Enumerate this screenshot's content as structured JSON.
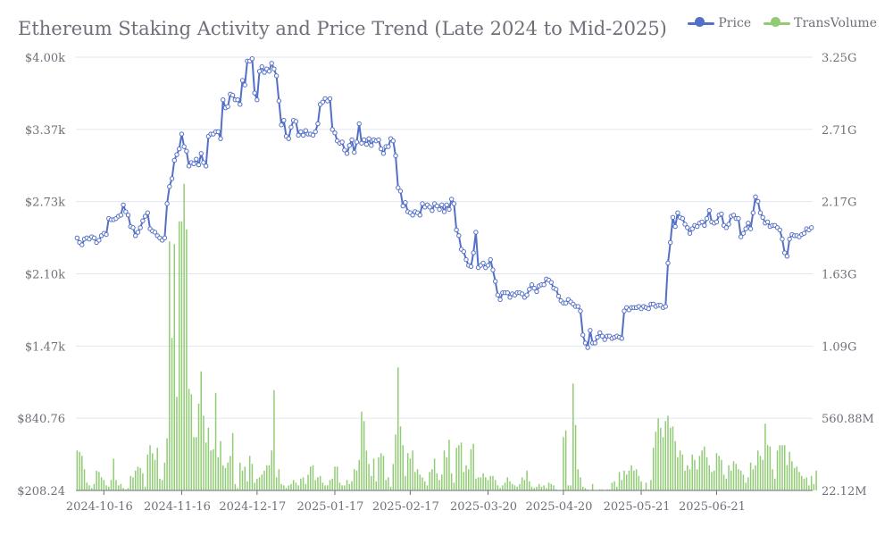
{
  "chart_data": {
    "type": "line",
    "title": "Ethereum Staking Activity and Price Trend (Late 2024 to Mid-2025)",
    "legend": {
      "position": "top-right"
    },
    "series": [
      {
        "name": "Price",
        "kind": "line",
        "axis": "left",
        "color": "#5470c6",
        "values": [
          2420,
          2380,
          2360,
          2410,
          2420,
          2410,
          2430,
          2420,
          2380,
          2400,
          2440,
          2460,
          2450,
          2590,
          2580,
          2580,
          2590,
          2610,
          2620,
          2710,
          2650,
          2620,
          2520,
          2510,
          2440,
          2470,
          2510,
          2570,
          2610,
          2640,
          2500,
          2480,
          2470,
          2440,
          2420,
          2400,
          2420,
          2720,
          2870,
          2940,
          3100,
          3150,
          3200,
          3330,
          3220,
          3180,
          3050,
          3080,
          3070,
          3110,
          3060,
          3160,
          3080,
          3050,
          3310,
          3330,
          3330,
          3350,
          3350,
          3290,
          3630,
          3560,
          3570,
          3680,
          3670,
          3630,
          3630,
          3590,
          3800,
          3760,
          3970,
          3970,
          3990,
          3690,
          3630,
          3880,
          3920,
          3870,
          3900,
          3880,
          3950,
          3900,
          3840,
          3620,
          3410,
          3450,
          3310,
          3290,
          3390,
          3450,
          3440,
          3320,
          3350,
          3320,
          3360,
          3330,
          3330,
          3320,
          3350,
          3420,
          3590,
          3610,
          3640,
          3620,
          3640,
          3370,
          3340,
          3270,
          3250,
          3260,
          3190,
          3160,
          3230,
          3280,
          3170,
          3260,
          3420,
          3250,
          3280,
          3240,
          3290,
          3230,
          3280,
          3270,
          3280,
          3200,
          3160,
          3220,
          3220,
          3290,
          3270,
          3140,
          2860,
          2830,
          2700,
          2730,
          2650,
          2640,
          2620,
          2650,
          2640,
          2620,
          2720,
          2690,
          2710,
          2690,
          2660,
          2720,
          2700,
          2670,
          2710,
          2650,
          2710,
          2670,
          2760,
          2720,
          2490,
          2440,
          2320,
          2300,
          2230,
          2180,
          2170,
          2290,
          2470,
          2160,
          2180,
          2200,
          2160,
          2180,
          2230,
          2140,
          2040,
          1920,
          1880,
          1940,
          1940,
          1940,
          1900,
          1930,
          1920,
          1940,
          1940,
          1930,
          1900,
          1920,
          1970,
          2010,
          1980,
          1950,
          2000,
          2010,
          2010,
          2060,
          2050,
          2030,
          1980,
          1970,
          1910,
          1870,
          1850,
          1850,
          1880,
          1860,
          1840,
          1820,
          1820,
          1780,
          1570,
          1500,
          1460,
          1610,
          1500,
          1500,
          1550,
          1590,
          1560,
          1530,
          1560,
          1560,
          1540,
          1550,
          1560,
          1550,
          1540,
          1780,
          1810,
          1790,
          1810,
          1810,
          1810,
          1820,
          1800,
          1820,
          1810,
          1800,
          1840,
          1840,
          1820,
          1830,
          1830,
          1810,
          1820,
          2200,
          2380,
          2600,
          2520,
          2640,
          2600,
          2590,
          2540,
          2510,
          2460,
          2500,
          2530,
          2520,
          2550,
          2560,
          2530,
          2590,
          2660,
          2560,
          2550,
          2560,
          2620,
          2630,
          2530,
          2510,
          2540,
          2610,
          2620,
          2590,
          2590,
          2430,
          2460,
          2500,
          2550,
          2500,
          2640,
          2780,
          2740,
          2640,
          2600,
          2550,
          2560,
          2520,
          2530,
          2530,
          2510,
          2490,
          2410,
          2290,
          2260,
          2410,
          2450,
          2440,
          2440,
          2430,
          2450,
          2460,
          2500,
          2490,
          2510
        ]
      },
      {
        "name": "TransVolume",
        "kind": "bar",
        "axis": "right",
        "color": "#91cc75",
        "values": [
          320,
          310,
          280,
          180,
          80,
          60,
          40,
          70,
          170,
          160,
          120,
          100,
          60,
          50,
          100,
          260,
          100,
          60,
          70,
          40,
          30,
          40,
          130,
          120,
          170,
          200,
          190,
          150,
          50,
          290,
          360,
          300,
          250,
          340,
          110,
          100,
          230,
          410,
          1880,
          1160,
          1860,
          720,
          2030,
          2030,
          2310,
          1970,
          780,
          740,
          420,
          420,
          670,
          910,
          580,
          380,
          490,
          320,
          330,
          750,
          270,
          390,
          210,
          190,
          230,
          280,
          450,
          70,
          40,
          230,
          170,
          200,
          90,
          280,
          220,
          80,
          110,
          120,
          140,
          170,
          210,
          210,
          320,
          770,
          120,
          180,
          70,
          60,
          40,
          60,
          70,
          100,
          80,
          60,
          110,
          120,
          70,
          140,
          200,
          210,
          100,
          120,
          130,
          80,
          60,
          60,
          100,
          110,
          200,
          200,
          80,
          60,
          60,
          100,
          70,
          90,
          180,
          170,
          250,
          610,
          540,
          320,
          220,
          130,
          260,
          90,
          270,
          300,
          280,
          100,
          120,
          50,
          220,
          440,
          940,
          500,
          360,
          130,
          300,
          260,
          320,
          160,
          180,
          140,
          120,
          90,
          60,
          160,
          180,
          260,
          150,
          100,
          140,
          320,
          270,
          400,
          150,
          80,
          340,
          360,
          380,
          160,
          210,
          180,
          330,
          370,
          110,
          120,
          120,
          150,
          120,
          100,
          130,
          130,
          100,
          60,
          40,
          60,
          80,
          120,
          90,
          70,
          60,
          50,
          70,
          120,
          100,
          170,
          90,
          50,
          40,
          50,
          70,
          50,
          60,
          40,
          80,
          70,
          60,
          30,
          20,
          20,
          420,
          470,
          60,
          60,
          820,
          510,
          180,
          120,
          50,
          40,
          30,
          20,
          70,
          20,
          10,
          30,
          30,
          20,
          30,
          30,
          80,
          90,
          50,
          160,
          100,
          170,
          140,
          170,
          210,
          170,
          180,
          130,
          90,
          30,
          80,
          30,
          100,
          340,
          460,
          560,
          490,
          420,
          540,
          580,
          490,
          500,
          390,
          270,
          320,
          290,
          170,
          210,
          180,
          290,
          250,
          180,
          280,
          320,
          350,
          270,
          210,
          160,
          170,
          300,
          280,
          250,
          140,
          110,
          210,
          170,
          240,
          220,
          180,
          170,
          140,
          80,
          120,
          230,
          180,
          210,
          320,
          280,
          250,
          520,
          360,
          350,
          180,
          110,
          320,
          360,
          360,
          360,
          210,
          310,
          240,
          190,
          200,
          160,
          130,
          110,
          120,
          60,
          130,
          70,
          170
        ]
      }
    ],
    "x_ticks": [
      "2024-10-16",
      "2024-11-16",
      "2024-12-17",
      "2025-01-17",
      "2025-02-17",
      "2025-03-20",
      "2025-04-20",
      "2025-05-21",
      "2025-06-21"
    ],
    "y_left_ticks": [
      "$208.24",
      "$840.76",
      "$1.47k",
      "$2.10k",
      "$2.73k",
      "$3.37k",
      "$4.00k"
    ],
    "y_left_range": [
      208.24,
      4003.36
    ],
    "y_right_ticks": [
      "22.12M",
      "560.88M",
      "1.09G",
      "1.63G",
      "2.17G",
      "2.71G",
      "3.25G"
    ],
    "y_right_range": [
      22.12,
      3254.68
    ],
    "y_right_unit": "M",
    "grid": true
  }
}
